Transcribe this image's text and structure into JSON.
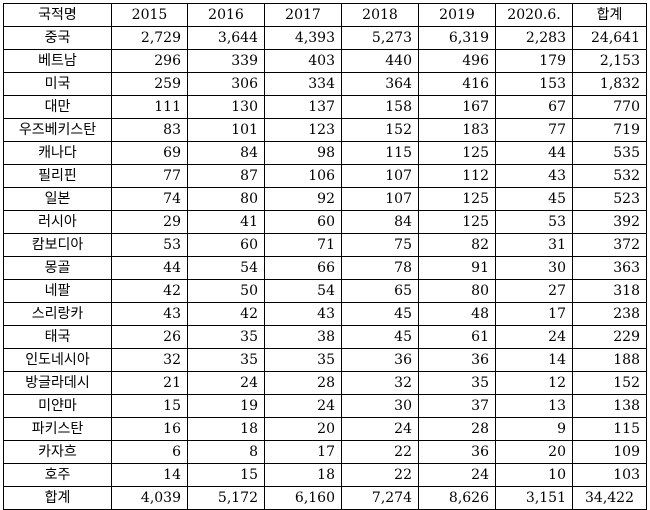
{
  "table": {
    "headers": [
      "국적명",
      "2015",
      "2016",
      "2017",
      "2018",
      "2019",
      "2020.6.",
      "합계"
    ],
    "rows": [
      {
        "country": "중국",
        "values": [
          "2,729",
          "3,644",
          "4,393",
          "5,273",
          "6,319",
          "2,283",
          "24,641"
        ]
      },
      {
        "country": "베트남",
        "values": [
          "296",
          "339",
          "403",
          "440",
          "496",
          "179",
          "2,153"
        ]
      },
      {
        "country": "미국",
        "values": [
          "259",
          "306",
          "334",
          "364",
          "416",
          "153",
          "1,832"
        ]
      },
      {
        "country": "대만",
        "values": [
          "111",
          "130",
          "137",
          "158",
          "167",
          "67",
          "770"
        ]
      },
      {
        "country": "우즈베키스탄",
        "values": [
          "83",
          "101",
          "123",
          "152",
          "183",
          "77",
          "719"
        ]
      },
      {
        "country": "캐나다",
        "values": [
          "69",
          "84",
          "98",
          "115",
          "125",
          "44",
          "535"
        ]
      },
      {
        "country": "필리핀",
        "values": [
          "77",
          "87",
          "106",
          "107",
          "112",
          "43",
          "532"
        ]
      },
      {
        "country": "일본",
        "values": [
          "74",
          "80",
          "92",
          "107",
          "125",
          "45",
          "523"
        ]
      },
      {
        "country": "러시아",
        "values": [
          "29",
          "41",
          "60",
          "84",
          "125",
          "53",
          "392"
        ]
      },
      {
        "country": "캄보디아",
        "values": [
          "53",
          "60",
          "71",
          "75",
          "82",
          "31",
          "372"
        ]
      },
      {
        "country": "몽골",
        "values": [
          "44",
          "54",
          "66",
          "78",
          "91",
          "30",
          "363"
        ]
      },
      {
        "country": "네팔",
        "values": [
          "42",
          "50",
          "54",
          "65",
          "80",
          "27",
          "318"
        ]
      },
      {
        "country": "스리랑카",
        "values": [
          "43",
          "42",
          "43",
          "45",
          "48",
          "17",
          "238"
        ]
      },
      {
        "country": "태국",
        "values": [
          "26",
          "35",
          "38",
          "45",
          "61",
          "24",
          "229"
        ]
      },
      {
        "country": "인도네시아",
        "values": [
          "32",
          "35",
          "35",
          "36",
          "36",
          "14",
          "188"
        ]
      },
      {
        "country": "방글라데시",
        "values": [
          "21",
          "24",
          "28",
          "32",
          "35",
          "12",
          "152"
        ]
      },
      {
        "country": "미얀마",
        "values": [
          "15",
          "19",
          "24",
          "30",
          "37",
          "13",
          "138"
        ]
      },
      {
        "country": "파키스탄",
        "values": [
          "16",
          "18",
          "20",
          "24",
          "28",
          "9",
          "115"
        ]
      },
      {
        "country": "카자흐",
        "values": [
          "6",
          "8",
          "17",
          "22",
          "36",
          "20",
          "109"
        ]
      },
      {
        "country": "호주",
        "values": [
          "14",
          "15",
          "18",
          "22",
          "24",
          "10",
          "103"
        ]
      }
    ],
    "total": {
      "country": "합계",
      "values": [
        "4,039",
        "5,172",
        "6,160",
        "7,274",
        "8,626",
        "3,151",
        "34,422"
      ]
    }
  }
}
